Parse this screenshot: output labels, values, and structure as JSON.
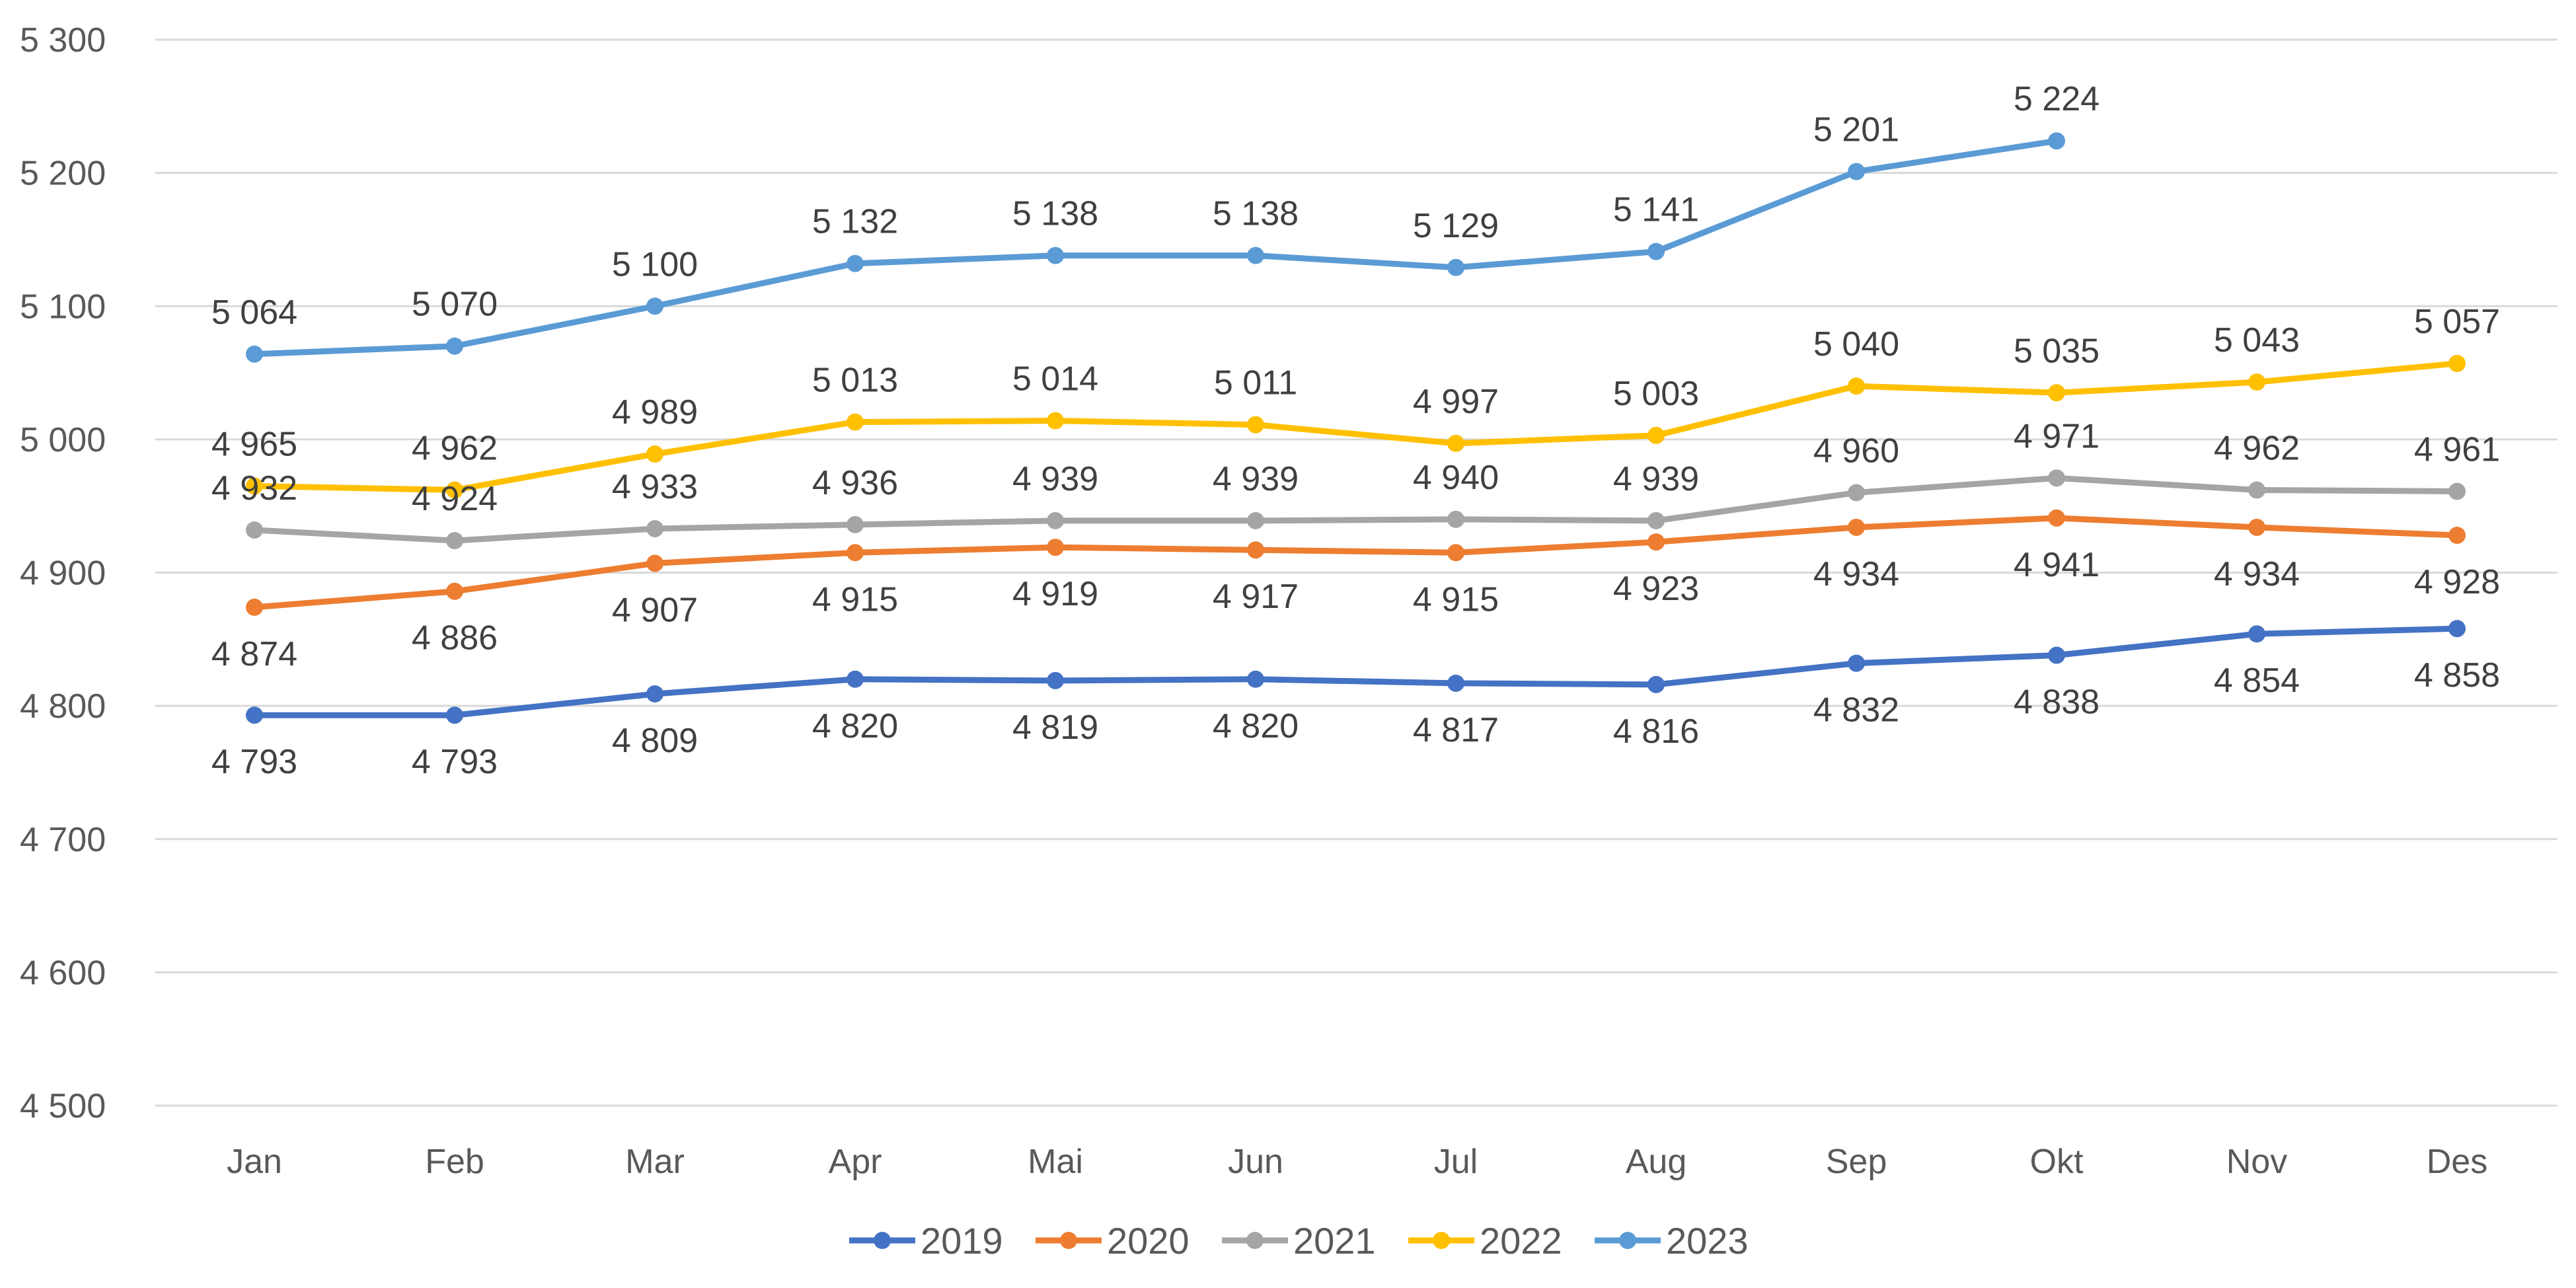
{
  "chart_data": {
    "type": "line",
    "title": "",
    "xlabel": "",
    "ylabel": "",
    "categories": [
      "Jan",
      "Feb",
      "Mar",
      "Apr",
      "Mai",
      "Jun",
      "Jul",
      "Aug",
      "Sep",
      "Okt",
      "Nov",
      "Des"
    ],
    "ylim": [
      4500,
      5300
    ],
    "y_ticks": [
      4500,
      4600,
      4700,
      4800,
      4900,
      5000,
      5100,
      5200,
      5300
    ],
    "y_tick_labels": [
      "4 500",
      "4 600",
      "4 700",
      "4 800",
      "4 900",
      "5 000",
      "5 100",
      "5 200",
      "5 300"
    ],
    "grid": true,
    "legend_position": "bottom",
    "series": [
      {
        "name": "2019",
        "color": "#4472c4",
        "label_position": "below",
        "values": [
          4793,
          4793,
          4809,
          4820,
          4819,
          4820,
          4817,
          4816,
          4832,
          4838,
          4854,
          4858
        ],
        "labels": [
          "4 793",
          "4 793",
          "4 809",
          "4 820",
          "4 819",
          "4 820",
          "4 817",
          "4 816",
          "4 832",
          "4 838",
          "4 854",
          "4 858"
        ]
      },
      {
        "name": "2020",
        "color": "#ed7d31",
        "label_position": "below",
        "values": [
          4874,
          4886,
          4907,
          4915,
          4919,
          4917,
          4915,
          4923,
          4934,
          4941,
          4934,
          4928
        ],
        "labels": [
          "4 874",
          "4 886",
          "4 907",
          "4 915",
          "4 919",
          "4 917",
          "4 915",
          "4 923",
          "4 934",
          "4 941",
          "4 934",
          "4 928"
        ]
      },
      {
        "name": "2021",
        "color": "#a5a5a5",
        "label_position": "above",
        "values": [
          4932,
          4924,
          4933,
          4936,
          4939,
          4939,
          4940,
          4939,
          4960,
          4971,
          4962,
          4961
        ],
        "labels": [
          "4 932",
          "4 924",
          "4 933",
          "4 936",
          "4 939",
          "4 939",
          "4 940",
          "4 939",
          "4 960",
          "4 971",
          "4 962",
          "4 961"
        ]
      },
      {
        "name": "2022",
        "color": "#ffc000",
        "label_position": "above",
        "values": [
          4965,
          4962,
          4989,
          5013,
          5014,
          5011,
          4997,
          5003,
          5040,
          5035,
          5043,
          5057
        ],
        "labels": [
          "4 965",
          "4 962",
          "4 989",
          "5 013",
          "5 014",
          "5 011",
          "4 997",
          "5 003",
          "5 040",
          "5 035",
          "5 043",
          "5 057"
        ]
      },
      {
        "name": "2023",
        "color": "#5b9bd5",
        "label_position": "above",
        "values": [
          5064,
          5070,
          5100,
          5132,
          5138,
          5138,
          5129,
          5141,
          5201,
          5224,
          null,
          null
        ],
        "labels": [
          "5 064",
          "5 070",
          "5 100",
          "5 132",
          "5 138",
          "5 138",
          "5 129",
          "5 141",
          "5 201",
          "5 224",
          null,
          null
        ]
      }
    ]
  }
}
